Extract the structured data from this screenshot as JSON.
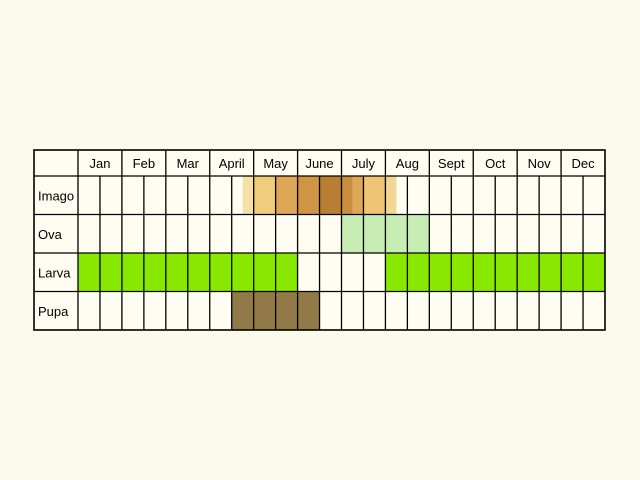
{
  "chart_data": {
    "type": "table",
    "title": "",
    "months": [
      "Jan",
      "Feb",
      "Mar",
      "April",
      "May",
      "June",
      "July",
      "Aug",
      "Sept",
      "Oct",
      "Nov",
      "Dec"
    ],
    "half_month_columns": 24,
    "stages": [
      {
        "name": "Imago",
        "segments": [
          {
            "start": 7.5,
            "end": 8,
            "color": "#f6e0a6"
          },
          {
            "start": 8,
            "end": 9,
            "color": "#f0cc7c"
          },
          {
            "start": 9,
            "end": 10,
            "color": "#dea758"
          },
          {
            "start": 10,
            "end": 11,
            "color": "#cf9544"
          },
          {
            "start": 11,
            "end": 12,
            "color": "#b87e34"
          },
          {
            "start": 12,
            "end": 12.5,
            "color": "#c98e3e"
          },
          {
            "start": 12.5,
            "end": 13,
            "color": "#dea758"
          },
          {
            "start": 13,
            "end": 14,
            "color": "#efc474"
          },
          {
            "start": 14,
            "end": 14.5,
            "color": "#f2d694"
          }
        ]
      },
      {
        "name": "Ova",
        "segments": [
          {
            "start": 12,
            "end": 16,
            "color": "#c8edb4"
          }
        ]
      },
      {
        "name": "Larva",
        "segments": [
          {
            "start": 0,
            "end": 10,
            "color": "#88e800"
          },
          {
            "start": 14,
            "end": 24,
            "color": "#88e800"
          }
        ]
      },
      {
        "name": "Pupa",
        "segments": [
          {
            "start": 7,
            "end": 11,
            "color": "#917a48"
          }
        ]
      }
    ]
  }
}
